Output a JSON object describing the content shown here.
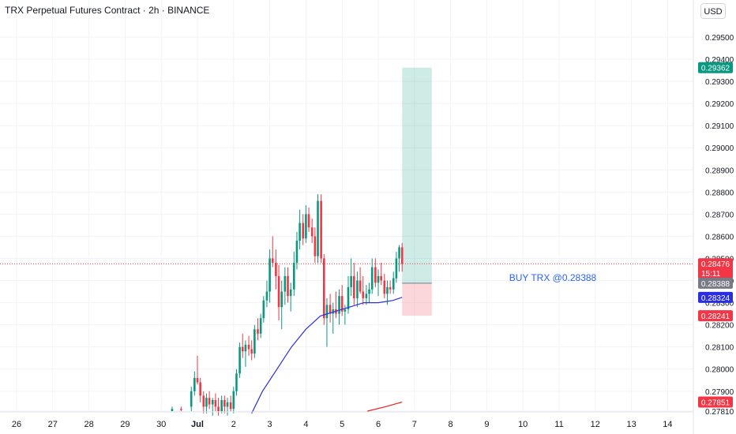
{
  "header": {
    "title": "TRX Perpetual Futures Contract · 2h · BINANCE",
    "currency": "USD"
  },
  "chart_data": {
    "type": "candlestick",
    "symbol": "TRX Perpetual Futures Contract",
    "interval": "2h",
    "exchange": "BINANCE",
    "ylim": [
      0.2781,
      0.2958
    ],
    "y_ticks": [
      "0.27810",
      "0.27900",
      "0.28000",
      "0.28100",
      "0.28200",
      "0.28300",
      "0.28400",
      "0.28500",
      "0.28600",
      "0.28700",
      "0.28800",
      "0.28900",
      "0.29000",
      "0.29100",
      "0.29200",
      "0.29300",
      "0.29400",
      "0.29500"
    ],
    "x_ticks": [
      {
        "label": "26",
        "pos": 0
      },
      {
        "label": "27",
        "pos": 1
      },
      {
        "label": "28",
        "pos": 2
      },
      {
        "label": "29",
        "pos": 3
      },
      {
        "label": "30",
        "pos": 4
      },
      {
        "label": "Jul",
        "pos": 5,
        "bold": true
      },
      {
        "label": "2",
        "pos": 6
      },
      {
        "label": "3",
        "pos": 7
      },
      {
        "label": "4",
        "pos": 8
      },
      {
        "label": "5",
        "pos": 9
      },
      {
        "label": "6",
        "pos": 10
      },
      {
        "label": "7",
        "pos": 11
      },
      {
        "label": "8",
        "pos": 12
      },
      {
        "label": "9",
        "pos": 13
      },
      {
        "label": "10",
        "pos": 14
      },
      {
        "label": "11",
        "pos": 15
      },
      {
        "label": "12",
        "pos": 16
      },
      {
        "label": "13",
        "pos": 17
      },
      {
        "label": "14",
        "pos": 18
      }
    ],
    "candles": [
      {
        "t": 4.3,
        "o": 0.2781,
        "h": 0.2783,
        "l": 0.2781,
        "c": 0.2782
      },
      {
        "t": 4.55,
        "o": 0.2782,
        "h": 0.2783,
        "l": 0.2781,
        "c": 0.27815
      },
      {
        "t": 4.83,
        "o": 0.2783,
        "h": 0.2792,
        "l": 0.2781,
        "c": 0.279
      },
      {
        "t": 4.92,
        "o": 0.279,
        "h": 0.2799,
        "l": 0.2788,
        "c": 0.2796
      },
      {
        "t": 5.0,
        "o": 0.2796,
        "h": 0.2806,
        "l": 0.2793,
        "c": 0.2794
      },
      {
        "t": 5.08,
        "o": 0.2794,
        "h": 0.2796,
        "l": 0.2785,
        "c": 0.2788
      },
      {
        "t": 5.17,
        "o": 0.2788,
        "h": 0.279,
        "l": 0.278,
        "c": 0.2783
      },
      {
        "t": 5.25,
        "o": 0.2783,
        "h": 0.2789,
        "l": 0.278,
        "c": 0.2787
      },
      {
        "t": 5.33,
        "o": 0.2787,
        "h": 0.279,
        "l": 0.2782,
        "c": 0.2784
      },
      {
        "t": 5.42,
        "o": 0.2784,
        "h": 0.2787,
        "l": 0.2779,
        "c": 0.2786
      },
      {
        "t": 5.5,
        "o": 0.2786,
        "h": 0.2789,
        "l": 0.2781,
        "c": 0.2783
      },
      {
        "t": 5.58,
        "o": 0.2783,
        "h": 0.2787,
        "l": 0.2779,
        "c": 0.2781
      },
      {
        "t": 5.67,
        "o": 0.2781,
        "h": 0.2788,
        "l": 0.278,
        "c": 0.2786
      },
      {
        "t": 5.75,
        "o": 0.2786,
        "h": 0.2788,
        "l": 0.278,
        "c": 0.2783
      },
      {
        "t": 5.83,
        "o": 0.2783,
        "h": 0.2787,
        "l": 0.2779,
        "c": 0.2785
      },
      {
        "t": 5.92,
        "o": 0.2785,
        "h": 0.2788,
        "l": 0.2781,
        "c": 0.2782
      },
      {
        "t": 6.0,
        "o": 0.2782,
        "h": 0.2792,
        "l": 0.278,
        "c": 0.279
      },
      {
        "t": 6.08,
        "o": 0.279,
        "h": 0.28,
        "l": 0.2788,
        "c": 0.2798
      },
      {
        "t": 6.17,
        "o": 0.2798,
        "h": 0.2812,
        "l": 0.2796,
        "c": 0.281
      },
      {
        "t": 6.25,
        "o": 0.281,
        "h": 0.2816,
        "l": 0.2805,
        "c": 0.2808
      },
      {
        "t": 6.33,
        "o": 0.2808,
        "h": 0.2813,
        "l": 0.2801,
        "c": 0.2811
      },
      {
        "t": 6.42,
        "o": 0.2811,
        "h": 0.2815,
        "l": 0.2806,
        "c": 0.2809
      },
      {
        "t": 6.5,
        "o": 0.2809,
        "h": 0.2813,
        "l": 0.2804,
        "c": 0.2807
      },
      {
        "t": 6.58,
        "o": 0.2807,
        "h": 0.282,
        "l": 0.2805,
        "c": 0.2818
      },
      {
        "t": 6.67,
        "o": 0.2818,
        "h": 0.2823,
        "l": 0.2813,
        "c": 0.2816
      },
      {
        "t": 6.75,
        "o": 0.2816,
        "h": 0.2825,
        "l": 0.2814,
        "c": 0.2823
      },
      {
        "t": 6.83,
        "o": 0.2823,
        "h": 0.2833,
        "l": 0.2821,
        "c": 0.2831
      },
      {
        "t": 6.92,
        "o": 0.2831,
        "h": 0.284,
        "l": 0.2828,
        "c": 0.2835
      },
      {
        "t": 7.0,
        "o": 0.2835,
        "h": 0.2854,
        "l": 0.283,
        "c": 0.285
      },
      {
        "t": 7.08,
        "o": 0.285,
        "h": 0.286,
        "l": 0.2846,
        "c": 0.2848
      },
      {
        "t": 7.17,
        "o": 0.2848,
        "h": 0.2854,
        "l": 0.2836,
        "c": 0.2842
      },
      {
        "t": 7.25,
        "o": 0.2842,
        "h": 0.2847,
        "l": 0.2822,
        "c": 0.2828
      },
      {
        "t": 7.33,
        "o": 0.2828,
        "h": 0.284,
        "l": 0.2818,
        "c": 0.2835
      },
      {
        "t": 7.42,
        "o": 0.2835,
        "h": 0.2846,
        "l": 0.2829,
        "c": 0.2842
      },
      {
        "t": 7.5,
        "o": 0.2842,
        "h": 0.2846,
        "l": 0.283,
        "c": 0.2833
      },
      {
        "t": 7.58,
        "o": 0.2833,
        "h": 0.2839,
        "l": 0.2826,
        "c": 0.2836
      },
      {
        "t": 7.67,
        "o": 0.2836,
        "h": 0.2853,
        "l": 0.2833,
        "c": 0.2848
      },
      {
        "t": 7.75,
        "o": 0.2848,
        "h": 0.2862,
        "l": 0.2845,
        "c": 0.2858
      },
      {
        "t": 7.83,
        "o": 0.2858,
        "h": 0.2872,
        "l": 0.2854,
        "c": 0.2866
      },
      {
        "t": 7.92,
        "o": 0.2866,
        "h": 0.287,
        "l": 0.2856,
        "c": 0.2859
      },
      {
        "t": 8.0,
        "o": 0.2859,
        "h": 0.2874,
        "l": 0.2857,
        "c": 0.287
      },
      {
        "t": 8.08,
        "o": 0.287,
        "h": 0.2873,
        "l": 0.2862,
        "c": 0.2864
      },
      {
        "t": 8.17,
        "o": 0.2864,
        "h": 0.2868,
        "l": 0.2857,
        "c": 0.286
      },
      {
        "t": 8.25,
        "o": 0.286,
        "h": 0.2864,
        "l": 0.2848,
        "c": 0.2851
      },
      {
        "t": 8.33,
        "o": 0.2851,
        "h": 0.2879,
        "l": 0.2848,
        "c": 0.2876
      },
      {
        "t": 8.42,
        "o": 0.2876,
        "h": 0.2879,
        "l": 0.2848,
        "c": 0.285
      },
      {
        "t": 8.5,
        "o": 0.285,
        "h": 0.2852,
        "l": 0.282,
        "c": 0.2823
      },
      {
        "t": 8.58,
        "o": 0.2823,
        "h": 0.2832,
        "l": 0.281,
        "c": 0.2829
      },
      {
        "t": 8.67,
        "o": 0.2829,
        "h": 0.2834,
        "l": 0.2821,
        "c": 0.2825
      },
      {
        "t": 8.75,
        "o": 0.2825,
        "h": 0.283,
        "l": 0.2816,
        "c": 0.2827
      },
      {
        "t": 8.83,
        "o": 0.2827,
        "h": 0.2835,
        "l": 0.2823,
        "c": 0.2825
      },
      {
        "t": 8.92,
        "o": 0.2825,
        "h": 0.2836,
        "l": 0.282,
        "c": 0.2833
      },
      {
        "t": 9.0,
        "o": 0.2833,
        "h": 0.2838,
        "l": 0.2824,
        "c": 0.2826
      },
      {
        "t": 9.08,
        "o": 0.2826,
        "h": 0.2829,
        "l": 0.282,
        "c": 0.2827
      },
      {
        "t": 9.17,
        "o": 0.2827,
        "h": 0.2842,
        "l": 0.2825,
        "c": 0.2837
      },
      {
        "t": 9.25,
        "o": 0.2837,
        "h": 0.285,
        "l": 0.2833,
        "c": 0.2842
      },
      {
        "t": 9.33,
        "o": 0.2842,
        "h": 0.2848,
        "l": 0.2829,
        "c": 0.2832
      },
      {
        "t": 9.42,
        "o": 0.2832,
        "h": 0.2844,
        "l": 0.2828,
        "c": 0.284
      },
      {
        "t": 9.5,
        "o": 0.284,
        "h": 0.2846,
        "l": 0.2834,
        "c": 0.2835
      },
      {
        "t": 9.58,
        "o": 0.2835,
        "h": 0.2842,
        "l": 0.2829,
        "c": 0.2832
      },
      {
        "t": 9.67,
        "o": 0.2832,
        "h": 0.2838,
        "l": 0.2829,
        "c": 0.2834
      },
      {
        "t": 9.75,
        "o": 0.2834,
        "h": 0.2839,
        "l": 0.283,
        "c": 0.2836
      },
      {
        "t": 9.83,
        "o": 0.2836,
        "h": 0.285,
        "l": 0.2834,
        "c": 0.2846
      },
      {
        "t": 9.92,
        "o": 0.2846,
        "h": 0.285,
        "l": 0.2837,
        "c": 0.2839
      },
      {
        "t": 10.0,
        "o": 0.2839,
        "h": 0.2845,
        "l": 0.2833,
        "c": 0.2842
      },
      {
        "t": 10.08,
        "o": 0.2842,
        "h": 0.2848,
        "l": 0.2838,
        "c": 0.284
      },
      {
        "t": 10.17,
        "o": 0.284,
        "h": 0.2843,
        "l": 0.2832,
        "c": 0.2834
      },
      {
        "t": 10.25,
        "o": 0.2834,
        "h": 0.284,
        "l": 0.2829,
        "c": 0.2837
      },
      {
        "t": 10.33,
        "o": 0.2837,
        "h": 0.284,
        "l": 0.2834,
        "c": 0.2836
      },
      {
        "t": 10.42,
        "o": 0.2836,
        "h": 0.2844,
        "l": 0.2834,
        "c": 0.2841
      },
      {
        "t": 10.5,
        "o": 0.2841,
        "h": 0.2853,
        "l": 0.2839,
        "c": 0.285
      },
      {
        "t": 10.58,
        "o": 0.285,
        "h": 0.2856,
        "l": 0.2844,
        "c": 0.2855
      },
      {
        "t": 10.66,
        "o": 0.2855,
        "h": 0.2857,
        "l": 0.2844,
        "c": 0.28476
      }
    ],
    "ma_blue": {
      "color": "#2a2ee0",
      "points": [
        [
          6.5,
          0.278
        ],
        [
          6.8,
          0.279
        ],
        [
          7.2,
          0.28
        ],
        [
          7.6,
          0.281
        ],
        [
          8.0,
          0.2818
        ],
        [
          8.4,
          0.2824
        ],
        [
          8.8,
          0.2826
        ],
        [
          9.2,
          0.2828
        ],
        [
          9.6,
          0.283
        ],
        [
          10.0,
          0.283
        ],
        [
          10.4,
          0.2831
        ],
        [
          10.66,
          0.28324
        ]
      ]
    },
    "ma_red": {
      "color": "#e8221d",
      "points": [
        [
          9.7,
          0.2781
        ],
        [
          10.2,
          0.2783
        ],
        [
          10.66,
          0.27851
        ]
      ]
    },
    "position_tool": {
      "side": "long",
      "t_start": 10.66,
      "t_end": 11.48,
      "entry": 0.28388,
      "target": 0.29362,
      "stop": 0.28241,
      "label": "BUY TRX @0.28388"
    },
    "current_price": 0.28476,
    "price_labels": [
      {
        "value": "0.29362",
        "price": 0.29362,
        "bg": "#089981",
        "fg": "#ffffff"
      },
      {
        "value": "0.28476",
        "price": 0.28476,
        "bg": "#f23645",
        "fg": "#ffffff",
        "sub": "15:11"
      },
      {
        "value": "0.28388",
        "price": 0.28388,
        "bg": "#787b86",
        "fg": "#ffffff"
      },
      {
        "value": "0.28324",
        "price": 0.28324,
        "bg": "#2a2ee0",
        "fg": "#ffffff"
      },
      {
        "value": "0.28241",
        "price": 0.28241,
        "bg": "#f23645",
        "fg": "#ffffff"
      },
      {
        "value": "0.27851",
        "price": 0.27851,
        "bg": "#f23645",
        "fg": "#ffffff"
      }
    ],
    "colors": {
      "up": "#089981",
      "down": "#f23645",
      "grid": "#f0f3fa",
      "text": "#131722"
    }
  }
}
